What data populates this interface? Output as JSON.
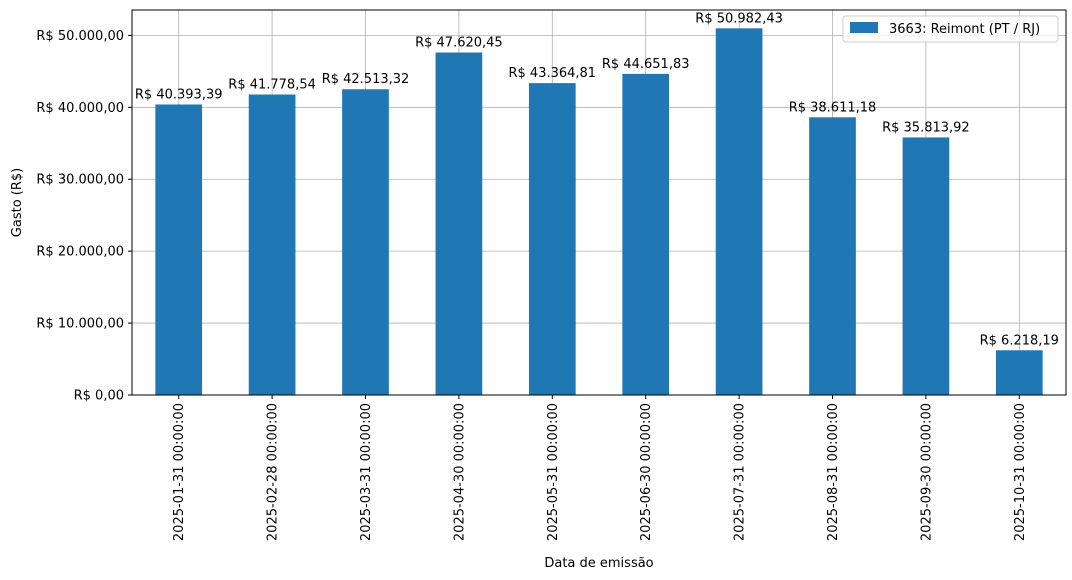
{
  "chart_data": {
    "type": "bar",
    "title": "",
    "xlabel": "Data de emissão",
    "ylabel": "Gasto (R$)",
    "categories": [
      "2025-01-31 00:00:00",
      "2025-02-28 00:00:00",
      "2025-03-31 00:00:00",
      "2025-04-30 00:00:00",
      "2025-05-31 00:00:00",
      "2025-06-30 00:00:00",
      "2025-07-31 00:00:00",
      "2025-08-31 00:00:00",
      "2025-09-30 00:00:00",
      "2025-10-31 00:00:00"
    ],
    "series": [
      {
        "name": "3663: Reimont (PT / RJ)",
        "color": "#1f77b4",
        "values": [
          40393.39,
          41778.54,
          42513.32,
          47620.45,
          43364.81,
          44651.83,
          50982.43,
          38611.18,
          35813.92,
          6218.19
        ],
        "labels": [
          "R$ 40.393,39",
          "R$ 41.778,54",
          "R$ 42.513,32",
          "R$ 47.620,45",
          "R$ 43.364,81",
          "R$ 44.651,83",
          "R$ 50.982,43",
          "R$ 38.611,18",
          "R$ 35.813,92",
          "R$ 6.218,19"
        ]
      }
    ],
    "yticks": [
      0,
      10000,
      20000,
      30000,
      40000,
      50000
    ],
    "ytick_labels": [
      "R$ 0,00",
      "R$ 10.000,00",
      "R$ 20.000,00",
      "R$ 30.000,00",
      "R$ 40.000,00",
      "R$ 50.000,00"
    ],
    "ylim": [
      0,
      53531.55
    ],
    "grid": true,
    "legend": "top-right"
  }
}
